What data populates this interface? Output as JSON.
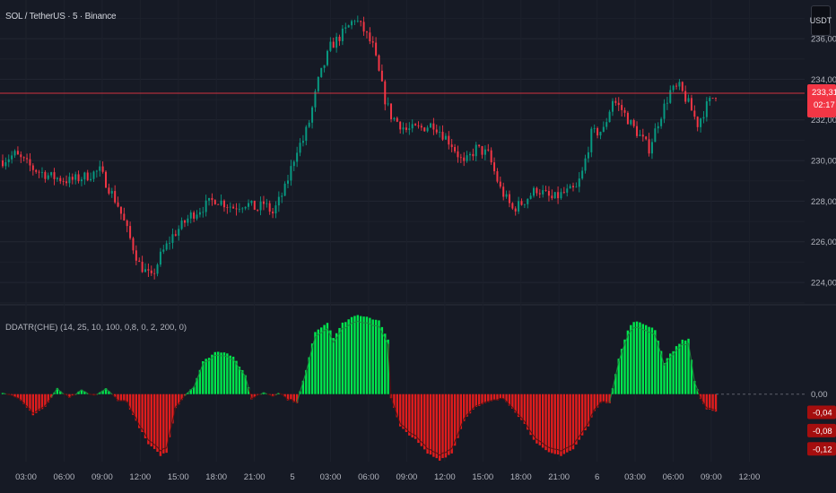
{
  "header": {
    "symbol_title": "SOL / TetherUS · 5 · Binance",
    "currency_button": "USDT"
  },
  "indicator": {
    "title": "DDATR(CHE) (14, 25, 10, 100, 0,8, 0, 2, 200, 0)"
  },
  "colors": {
    "background": "#161a25",
    "up_candle": "#089981",
    "down_candle": "#f23645",
    "osc_positive": "#00e64d",
    "osc_negative": "#e21d1d",
    "signal_line_positive": "#1b8a3e",
    "signal_line_negative": "#5a1010",
    "price_line": "#f23645"
  },
  "chart_data": [
    {
      "type": "candlestick",
      "title": "SOL / TetherUS · 5 · Binance",
      "yaxis_ticks": [
        "236,00",
        "234,00",
        "232,00",
        "230,00",
        "228,00",
        "226,00",
        "224,00"
      ],
      "ylim": [
        222.9,
        237.9
      ],
      "current_price": {
        "value": "233,31",
        "countdown": "02:17"
      },
      "xaxis_ticks": [
        "03:00",
        "06:00",
        "09:00",
        "12:00",
        "15:00",
        "18:00",
        "21:00",
        "5",
        "03:00",
        "06:00",
        "09:00",
        "12:00",
        "15:00",
        "18:00",
        "21:00",
        "6",
        "03:00",
        "06:00",
        "09:00",
        "12:00"
      ],
      "close_path": [
        [
          0,
          230.0
        ],
        [
          4,
          230.3
        ],
        [
          10,
          229.6
        ],
        [
          16,
          229.2
        ],
        [
          22,
          229.0
        ],
        [
          27,
          229.2
        ],
        [
          32,
          229.5
        ],
        [
          38,
          227.8
        ],
        [
          45,
          224.9
        ],
        [
          49,
          224.2
        ],
        [
          52,
          225.3
        ],
        [
          56,
          226.3
        ],
        [
          62,
          227.3
        ],
        [
          66,
          227.7
        ],
        [
          70,
          228.1
        ],
        [
          76,
          227.7
        ],
        [
          80,
          227.9
        ],
        [
          84,
          227.6
        ],
        [
          86,
          227.9
        ],
        [
          89,
          227.4
        ],
        [
          93,
          228.6
        ],
        [
          97,
          230.6
        ],
        [
          99,
          231.0
        ],
        [
          101,
          231.9
        ],
        [
          104,
          233.9
        ],
        [
          108,
          235.6
        ],
        [
          113,
          236.4
        ],
        [
          116,
          237.0
        ],
        [
          119,
          236.4
        ],
        [
          122,
          235.6
        ],
        [
          126,
          233.0
        ],
        [
          128,
          232.2
        ],
        [
          133,
          231.5
        ],
        [
          138,
          231.6
        ],
        [
          142,
          231.8
        ],
        [
          148,
          230.8
        ],
        [
          152,
          229.8
        ],
        [
          156,
          230.6
        ],
        [
          160,
          230.3
        ],
        [
          164,
          228.6
        ],
        [
          168,
          227.6
        ],
        [
          171,
          227.9
        ],
        [
          176,
          228.6
        ],
        [
          181,
          228.1
        ],
        [
          185,
          228.4
        ],
        [
          189,
          228.6
        ],
        [
          191,
          229.4
        ],
        [
          194,
          231.3
        ],
        [
          198,
          231.5
        ],
        [
          201,
          233.0
        ],
        [
          204,
          232.5
        ],
        [
          207,
          231.8
        ],
        [
          210,
          231.2
        ],
        [
          213,
          230.6
        ],
        [
          216,
          231.9
        ],
        [
          220,
          233.4
        ],
        [
          223,
          233.6
        ],
        [
          226,
          232.8
        ],
        [
          229,
          231.8
        ],
        [
          232,
          232.7
        ],
        [
          235,
          233.3
        ]
      ]
    },
    {
      "type": "area",
      "title": "DDATR(CHE) (14, 25, 10, 100, 0,8, 0, 2, 200, 0)",
      "yaxis_ticks": [
        "0,00",
        "-0,04",
        "-0,08",
        "-0,12"
      ],
      "ylim": [
        -0.148,
        0.196
      ],
      "series": [
        {
          "values_path": [
            [
              0,
              0.004
            ],
            [
              5,
              -0.008
            ],
            [
              10,
              -0.045
            ],
            [
              14,
              -0.028
            ],
            [
              18,
              0.012
            ],
            [
              22,
              -0.009
            ],
            [
              26,
              0.008
            ],
            [
              30,
              -0.004
            ],
            [
              34,
              0.012
            ],
            [
              38,
              -0.013
            ],
            [
              41,
              -0.018
            ],
            [
              44,
              -0.06
            ],
            [
              48,
              -0.11
            ],
            [
              52,
              -0.134
            ],
            [
              54,
              -0.128
            ],
            [
              57,
              -0.03
            ],
            [
              60,
              -0.003
            ],
            [
              63,
              0.018
            ],
            [
              66,
              0.071
            ],
            [
              70,
              0.092
            ],
            [
              73,
              0.093
            ],
            [
              76,
              0.083
            ],
            [
              80,
              0.04
            ],
            [
              82,
              -0.01
            ],
            [
              86,
              0.004
            ],
            [
              89,
              -0.004
            ],
            [
              91,
              0.004
            ],
            [
              94,
              -0.012
            ],
            [
              97,
              -0.018
            ],
            [
              100,
              0.052
            ],
            [
              103,
              0.138
            ],
            [
              107,
              0.157
            ],
            [
              109,
              0.125
            ],
            [
              112,
              0.155
            ],
            [
              116,
              0.173
            ],
            [
              120,
              0.168
            ],
            [
              124,
              0.162
            ],
            [
              127,
              0.12
            ],
            [
              128,
              -0.01
            ],
            [
              131,
              -0.072
            ],
            [
              136,
              -0.1
            ],
            [
              140,
              -0.13
            ],
            [
              144,
              -0.144
            ],
            [
              148,
              -0.13
            ],
            [
              150,
              -0.095
            ],
            [
              152,
              -0.058
            ],
            [
              155,
              -0.032
            ],
            [
              160,
              -0.018
            ],
            [
              165,
              -0.01
            ],
            [
              168,
              -0.03
            ],
            [
              172,
              -0.066
            ],
            [
              176,
              -0.109
            ],
            [
              180,
              -0.129
            ],
            [
              184,
              -0.134
            ],
            [
              188,
              -0.121
            ],
            [
              193,
              -0.07
            ],
            [
              195,
              -0.035
            ],
            [
              197,
              -0.02
            ],
            [
              200,
              -0.018
            ],
            [
              203,
              0.078
            ],
            [
              206,
              0.14
            ],
            [
              208,
              0.16
            ],
            [
              212,
              0.152
            ],
            [
              215,
              0.142
            ],
            [
              218,
              0.07
            ],
            [
              221,
              0.096
            ],
            [
              224,
              0.119
            ],
            [
              226,
              0.12
            ],
            [
              228,
              0.03
            ],
            [
              230,
              -0.01
            ],
            [
              232,
              -0.033
            ],
            [
              235,
              -0.04
            ]
          ]
        }
      ]
    }
  ]
}
